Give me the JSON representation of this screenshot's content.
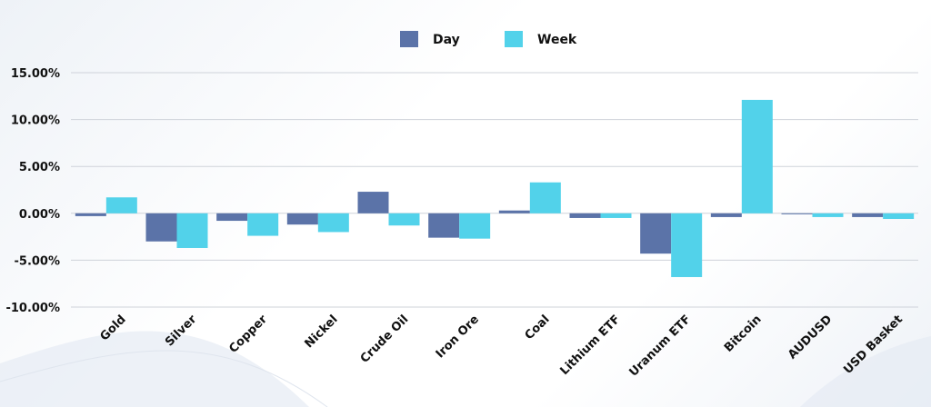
{
  "chart_data": {
    "type": "bar",
    "categories": [
      "Gold",
      "Silver",
      "Copper",
      "Nickel",
      "Crude Oil",
      "Iron Ore",
      "Coal",
      "Lithium ETF",
      "Uranum ETF",
      "Bitcoin",
      "AUDUSD",
      "USD Basket"
    ],
    "series": [
      {
        "name": "Day",
        "color": "#5b73a8",
        "values": [
          -0.3,
          -3.0,
          -0.8,
          -1.2,
          2.3,
          -2.6,
          0.3,
          -0.5,
          -4.3,
          -0.4,
          -0.1,
          -0.4
        ]
      },
      {
        "name": "Week",
        "color": "#52d2ea",
        "values": [
          1.7,
          -3.7,
          -2.4,
          -2.0,
          -1.3,
          -2.7,
          3.3,
          -0.5,
          -6.8,
          12.1,
          -0.4,
          -0.6
        ]
      }
    ],
    "y_ticks": [
      "15.00%",
      "10.00%",
      "5.00%",
      "0.00%",
      "-5.00%",
      "-10.00%"
    ],
    "ylim": [
      -10,
      15
    ],
    "grid": true,
    "legend": "top-center"
  }
}
